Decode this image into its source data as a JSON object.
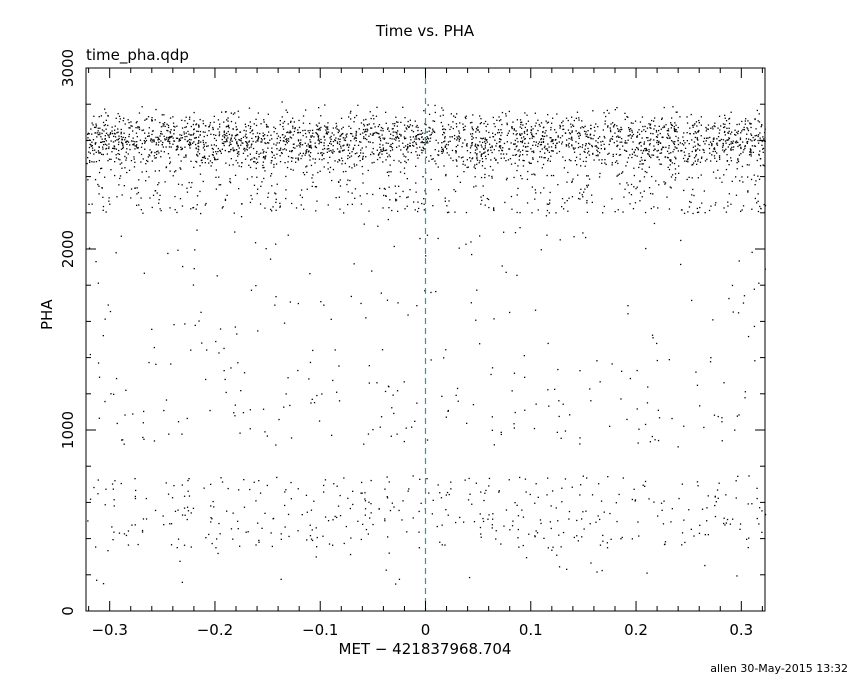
{
  "chart_data": {
    "type": "scatter",
    "title": "Time vs. PHA",
    "subtitle": "time_pha.qdp",
    "xlabel": "MET − 421837968.704",
    "ylabel": "PHA",
    "xlim": [
      -0.3225,
      0.3225
    ],
    "ylim": [
      0,
      3000
    ],
    "xticks": [
      -0.3,
      -0.2,
      -0.1,
      0,
      0.1,
      0.2,
      0.3
    ],
    "xtick_labels": [
      "−0.3",
      "−0.2",
      "−0.1",
      "0",
      "0.1",
      "0.2",
      "0.3"
    ],
    "yticks": [
      0,
      1000,
      2000,
      3000
    ],
    "ytick_labels": [
      "0",
      "1000",
      "2000",
      "3000"
    ],
    "reference_line": {
      "x": 0,
      "style": "dashed",
      "color": "#2a9aa8"
    },
    "point_color": "#000000",
    "density_bands": [
      {
        "pha_range": [
          2450,
          2750
        ],
        "relative_density": "very high"
      },
      {
        "pha_range": [
          2200,
          2450
        ],
        "relative_density": "medium"
      },
      {
        "pha_range": [
          1300,
          2200
        ],
        "relative_density": "low"
      },
      {
        "pha_range": [
          900,
          1300
        ],
        "relative_density": "low-medium"
      },
      {
        "pha_range": [
          350,
          750
        ],
        "relative_density": "medium"
      },
      {
        "pha_range": [
          150,
          350
        ],
        "relative_density": "sparse"
      }
    ],
    "grid": false
  },
  "footer": "allen 30-May-2015 13:32"
}
